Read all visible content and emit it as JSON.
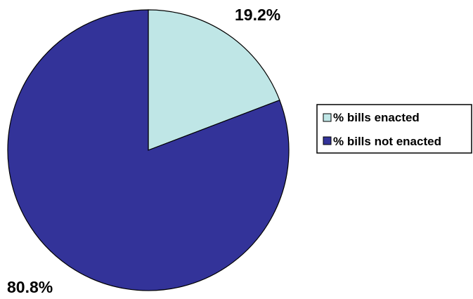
{
  "chart_data": {
    "type": "pie",
    "title": "",
    "slices": [
      {
        "label": "% bills enacted",
        "value": 19.2,
        "value_label": "19.2%",
        "color": "#bfe6e6"
      },
      {
        "label": "% bills not enacted",
        "value": 80.8,
        "value_label": "80.8%",
        "color": "#333399"
      }
    ],
    "start_angle_deg": 0,
    "direction": "clockwise",
    "legend": {
      "position": "right",
      "entries": [
        "% bills enacted",
        "% bills not enacted"
      ]
    }
  }
}
